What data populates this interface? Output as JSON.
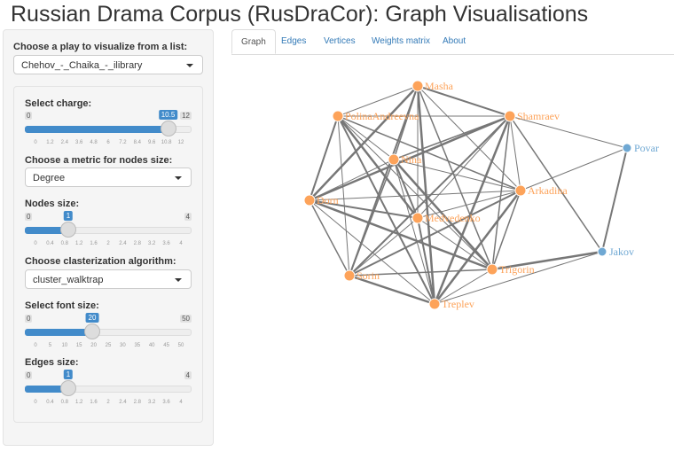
{
  "title": "Russian Drama Corpus (RusDraCor): Graph Visualisations",
  "sidebar": {
    "play_label": "Choose a play to visualize from a list:",
    "play_value": "Chehov_-_Chaika_-_ilibrary",
    "charge": {
      "label": "Select charge:",
      "min": 0,
      "max": 12,
      "value": 10.5,
      "ticks": [
        "0",
        "1.2",
        "2.4",
        "3.6",
        "4.8",
        "6",
        "7.2",
        "8.4",
        "9.6",
        "10.8",
        "12"
      ]
    },
    "metric_label": "Choose a metric for nodes size:",
    "metric_value": "Degree",
    "nodes": {
      "label": "Nodes size:",
      "min": 0,
      "max": 4,
      "value": 1,
      "ticks": [
        "0",
        "0.4",
        "0.8",
        "1.2",
        "1.6",
        "2",
        "2.4",
        "2.8",
        "3.2",
        "3.6",
        "4"
      ]
    },
    "cluster_label": "Choose clasterization algorithm:",
    "cluster_value": "cluster_walktrap",
    "font": {
      "label": "Select font size:",
      "min": 0,
      "max": 50,
      "value": 20,
      "ticks": [
        "0",
        "5",
        "10",
        "15",
        "20",
        "25",
        "30",
        "35",
        "40",
        "45",
        "50"
      ]
    },
    "edges": {
      "label": "Edges size:",
      "min": 0,
      "max": 4,
      "value": 1,
      "ticks": [
        "0",
        "0.4",
        "0.8",
        "1.2",
        "1.6",
        "2",
        "2.4",
        "2.8",
        "3.2",
        "3.6",
        "4"
      ]
    }
  },
  "tabs": [
    "Graph",
    "Edges",
    "Vertices",
    "Weights matrix",
    "About"
  ],
  "active_tab": "Graph",
  "colors": {
    "cluster1": "#fda35a",
    "cluster2": "#6fa8d3",
    "edge": "#777777",
    "accent": "#428bca"
  },
  "graph": {
    "nodes": [
      {
        "name": "Masha",
        "c": 1
      },
      {
        "name": "PolinaAndreevna",
        "c": 1
      },
      {
        "name": "Shamraev",
        "c": 1
      },
      {
        "name": "Nina",
        "c": 1
      },
      {
        "name": "Dorn",
        "c": 1
      },
      {
        "name": "Arkadina",
        "c": 1
      },
      {
        "name": "Medvedenko",
        "c": 1
      },
      {
        "name": "Sorin",
        "c": 1
      },
      {
        "name": "Trigorin",
        "c": 1
      },
      {
        "name": "Treplev",
        "c": 1
      },
      {
        "name": "Povar",
        "c": 2
      },
      {
        "name": "Jakov",
        "c": 2
      }
    ],
    "extra_edges": [
      [
        "Povar",
        "Arkadina"
      ],
      [
        "Povar",
        "Jakov"
      ],
      [
        "Shamraev",
        "Jakov"
      ],
      [
        "Jakov",
        "Trigorin"
      ],
      [
        "Jakov",
        "Treplev"
      ],
      [
        "Shamraev",
        "Povar"
      ]
    ]
  }
}
